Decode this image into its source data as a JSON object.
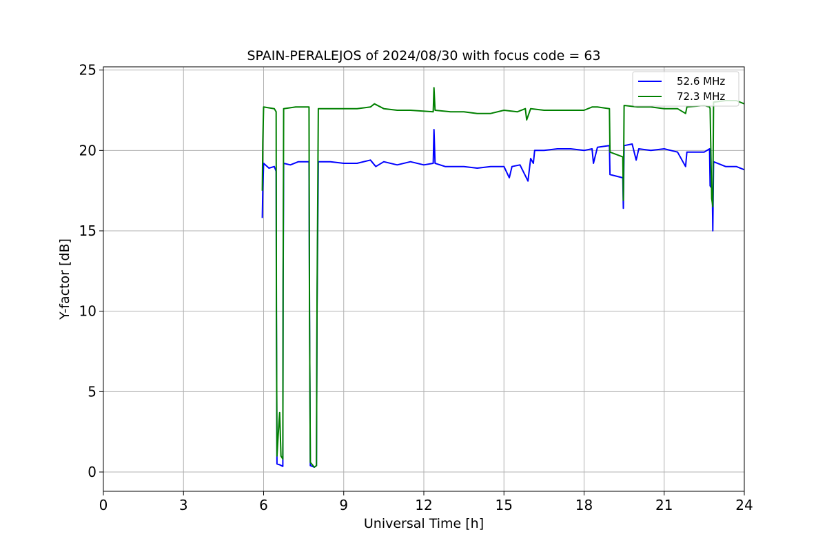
{
  "chart_data": {
    "type": "line",
    "title": "SPAIN-PERALEJOS of 2024/08/30 with focus code = 63",
    "xlabel": "Universal Time [h]",
    "ylabel": "Y-factor [dB]",
    "xlim": [
      0,
      24
    ],
    "ylim": [
      -1.2,
      25.2
    ],
    "xticks": [
      0,
      3,
      6,
      9,
      12,
      15,
      18,
      21,
      24
    ],
    "yticks": [
      0,
      5,
      10,
      15,
      20,
      25
    ],
    "grid": true,
    "legend_position": "top-right",
    "series": [
      {
        "name": "52.6 MHz",
        "color": "#0000ff",
        "points": [
          [
            5.95,
            15.8
          ],
          [
            5.97,
            17.5
          ],
          [
            6.0,
            19.2
          ],
          [
            6.2,
            18.9
          ],
          [
            6.4,
            19.0
          ],
          [
            6.47,
            18.7
          ],
          [
            6.48,
            9.5
          ],
          [
            6.5,
            0.5
          ],
          [
            6.6,
            0.45
          ],
          [
            6.72,
            0.35
          ],
          [
            6.73,
            11.5
          ],
          [
            6.75,
            19.2
          ],
          [
            7.0,
            19.1
          ],
          [
            7.3,
            19.3
          ],
          [
            7.7,
            19.3
          ],
          [
            7.72,
            10.0
          ],
          [
            7.75,
            0.4
          ],
          [
            7.9,
            0.3
          ],
          [
            7.98,
            0.4
          ],
          [
            8.0,
            9.8
          ],
          [
            8.05,
            19.3
          ],
          [
            8.5,
            19.3
          ],
          [
            9.0,
            19.2
          ],
          [
            9.5,
            19.2
          ],
          [
            10.0,
            19.4
          ],
          [
            10.2,
            19.0
          ],
          [
            10.5,
            19.3
          ],
          [
            11.0,
            19.1
          ],
          [
            11.5,
            19.3
          ],
          [
            12.0,
            19.1
          ],
          [
            12.35,
            19.2
          ],
          [
            12.38,
            21.3
          ],
          [
            12.42,
            19.2
          ],
          [
            12.8,
            19.0
          ],
          [
            13.5,
            19.0
          ],
          [
            14.0,
            18.9
          ],
          [
            14.5,
            19.0
          ],
          [
            15.0,
            19.0
          ],
          [
            15.2,
            18.3
          ],
          [
            15.3,
            19.0
          ],
          [
            15.6,
            19.1
          ],
          [
            15.9,
            18.1
          ],
          [
            16.0,
            19.5
          ],
          [
            16.1,
            19.2
          ],
          [
            16.15,
            20.0
          ],
          [
            16.5,
            20.0
          ],
          [
            17.0,
            20.1
          ],
          [
            17.5,
            20.1
          ],
          [
            18.0,
            20.0
          ],
          [
            18.3,
            20.1
          ],
          [
            18.35,
            19.2
          ],
          [
            18.5,
            20.2
          ],
          [
            18.95,
            20.3
          ],
          [
            18.97,
            18.5
          ],
          [
            19.45,
            18.3
          ],
          [
            19.47,
            16.4
          ],
          [
            19.5,
            20.3
          ],
          [
            19.8,
            20.4
          ],
          [
            19.95,
            19.4
          ],
          [
            20.05,
            20.1
          ],
          [
            20.5,
            20.0
          ],
          [
            21.0,
            20.1
          ],
          [
            21.5,
            19.9
          ],
          [
            21.8,
            19.0
          ],
          [
            21.85,
            19.9
          ],
          [
            22.5,
            19.9
          ],
          [
            22.7,
            20.1
          ],
          [
            22.72,
            17.8
          ],
          [
            22.8,
            17.6
          ],
          [
            22.82,
            15.0
          ],
          [
            22.85,
            19.3
          ],
          [
            23.3,
            19.0
          ],
          [
            23.7,
            19.0
          ],
          [
            24.0,
            18.8
          ]
        ]
      },
      {
        "name": "72.3 MHz",
        "color": "#008000",
        "points": [
          [
            5.95,
            17.5
          ],
          [
            5.97,
            20.5
          ],
          [
            6.0,
            22.7
          ],
          [
            6.4,
            22.6
          ],
          [
            6.47,
            22.4
          ],
          [
            6.48,
            10.0
          ],
          [
            6.5,
            1.0
          ],
          [
            6.55,
            2.4
          ],
          [
            6.6,
            3.7
          ],
          [
            6.65,
            1.0
          ],
          [
            6.72,
            0.8
          ],
          [
            6.73,
            12.0
          ],
          [
            6.75,
            22.6
          ],
          [
            7.2,
            22.7
          ],
          [
            7.7,
            22.7
          ],
          [
            7.72,
            10.0
          ],
          [
            7.75,
            0.6
          ],
          [
            7.9,
            0.3
          ],
          [
            7.98,
            0.4
          ],
          [
            8.0,
            10.5
          ],
          [
            8.05,
            22.6
          ],
          [
            8.5,
            22.6
          ],
          [
            9.0,
            22.6
          ],
          [
            9.5,
            22.6
          ],
          [
            10.0,
            22.7
          ],
          [
            10.15,
            22.9
          ],
          [
            10.5,
            22.6
          ],
          [
            11.0,
            22.5
          ],
          [
            11.5,
            22.5
          ],
          [
            12.35,
            22.4
          ],
          [
            12.38,
            23.9
          ],
          [
            12.42,
            22.5
          ],
          [
            13.0,
            22.4
          ],
          [
            13.5,
            22.4
          ],
          [
            14.0,
            22.3
          ],
          [
            14.5,
            22.3
          ],
          [
            15.0,
            22.5
          ],
          [
            15.5,
            22.4
          ],
          [
            15.8,
            22.6
          ],
          [
            15.85,
            21.9
          ],
          [
            16.0,
            22.6
          ],
          [
            16.5,
            22.5
          ],
          [
            17.0,
            22.5
          ],
          [
            17.5,
            22.5
          ],
          [
            18.0,
            22.5
          ],
          [
            18.3,
            22.7
          ],
          [
            18.5,
            22.7
          ],
          [
            18.95,
            22.6
          ],
          [
            18.97,
            19.9
          ],
          [
            19.45,
            19.6
          ],
          [
            19.47,
            16.9
          ],
          [
            19.5,
            22.8
          ],
          [
            20.0,
            22.7
          ],
          [
            20.5,
            22.7
          ],
          [
            21.0,
            22.6
          ],
          [
            21.5,
            22.6
          ],
          [
            21.8,
            22.3
          ],
          [
            21.85,
            22.7
          ],
          [
            22.5,
            22.8
          ],
          [
            22.7,
            22.7
          ],
          [
            22.72,
            22.6
          ],
          [
            22.78,
            17.0
          ],
          [
            22.82,
            16.5
          ],
          [
            22.85,
            23.0
          ],
          [
            23.3,
            23.1
          ],
          [
            23.7,
            23.1
          ],
          [
            24.0,
            22.9
          ]
        ]
      }
    ]
  }
}
